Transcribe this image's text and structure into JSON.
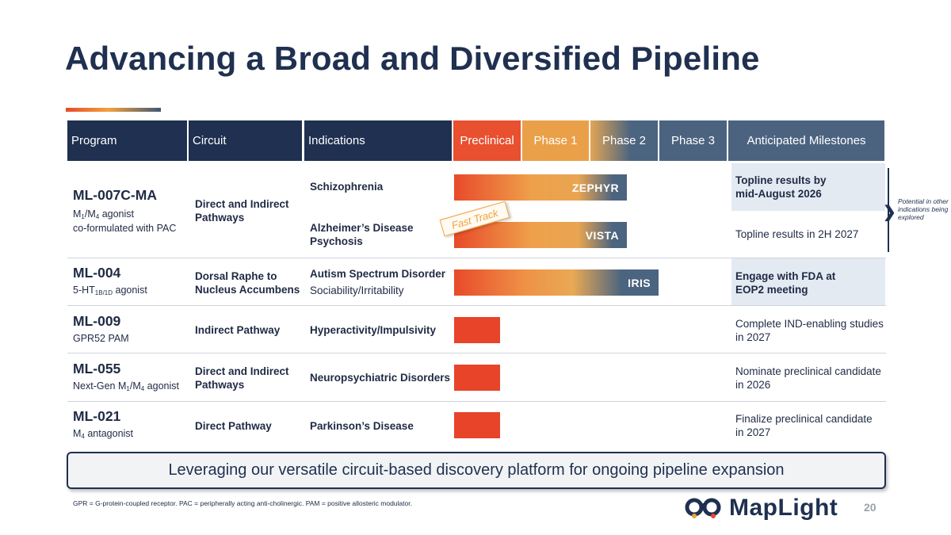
{
  "title": "Advancing a Broad and Diversified Pipeline",
  "headers": {
    "program": "Program",
    "circuit": "Circuit",
    "indications": "Indications",
    "preclinical": "Preclinical",
    "phase1": "Phase 1",
    "phase2": "Phase 2",
    "phase3": "Phase 3",
    "milestones": "Anticipated Milestones"
  },
  "rows": [
    {
      "program": "ML-007C-MA",
      "sub_a": "M",
      "sub_a_idx": "1",
      "sub_b": "/M",
      "sub_b_idx": "4",
      "sub_c": " agonist",
      "sub_line2": "co-formulated with PAC",
      "circuit": "Direct and Indirect Pathways",
      "indication_1": "Schizophrenia",
      "indication_2a": "Alzheimer’s Disease",
      "indication_2b": "Psychosis",
      "trial_1": "ZEPHYR",
      "trial_2": "VISTA",
      "fast_track": "Fast Track",
      "milestone_1a": "Topline results by",
      "milestone_1b": "mid-August 2026",
      "milestone_2": "Topline results in 2H 2027",
      "note": "Potential in other indications being explored"
    },
    {
      "program": "ML-004",
      "sub_a": "5-HT",
      "sub_a_idx": "1B/1D",
      "sub_c": " agonist",
      "circuit_a": "Dorsal Raphe to",
      "circuit_b": "Nucleus Accumbens",
      "indication_a": "Autism Spectrum Disorder",
      "indication_b": "Sociability/Irritability",
      "trial": "IRIS",
      "milestone_a": "Engage with FDA at",
      "milestone_b": "EOP2 meeting"
    },
    {
      "program": "ML-009",
      "sub": "GPR52 PAM",
      "circuit": "Indirect Pathway",
      "indication": "Hyperactivity/Impulsivity",
      "milestone_a": "Complete IND-enabling studies",
      "milestone_b": "in 2027"
    },
    {
      "program": "ML-055",
      "sub_a": "Next-Gen M",
      "sub_a_idx": "1",
      "sub_b": "/M",
      "sub_b_idx": "4",
      "sub_c": " agonist",
      "circuit_a": "Direct and Indirect",
      "circuit_b": "Pathways",
      "indication": "Neuropsychiatric Disorders",
      "milestone_a": "Nominate preclinical candidate",
      "milestone_b": "in 2026"
    },
    {
      "program": "ML-021",
      "sub_a": "M",
      "sub_a_idx": "4",
      "sub_c": " antagonist",
      "circuit": "Direct Pathway",
      "indication": "Parkinson’s Disease",
      "milestone_a": "Finalize preclinical candidate",
      "milestone_b": "in 2027"
    }
  ],
  "banner": "Leveraging our versatile circuit-based discovery platform for ongoing pipeline expansion",
  "footnote": "GPR = G-protein-coupled receptor. PAC = peripherally acting anti-cholinergic. PAM = positive allosteric modulator.",
  "logo_text": "MapLight",
  "page_number": "20",
  "colors": {
    "navy": "#1f3050",
    "orange_red": "#e84a2a",
    "amber": "#f0a23c",
    "slate": "#4c6380"
  }
}
